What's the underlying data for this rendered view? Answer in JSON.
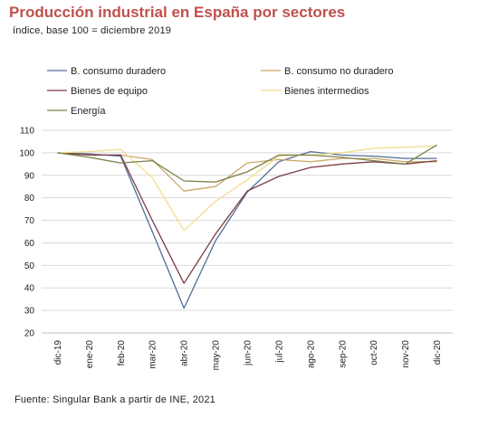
{
  "header": {
    "title": "Producción industrial en España por sectores",
    "subtitle": "índice, base 100 = diciembre 2019"
  },
  "footer": {
    "source": "Fuente: Singular Bank a partir de INE, 2021"
  },
  "chart_data": {
    "type": "line",
    "title": "Producción industrial en España por sectores",
    "subtitle": "índice, base 100 = diciembre 2019",
    "categories": [
      "dic-19",
      "ene-20",
      "feb-20",
      "mar-20",
      "abr-20",
      "may-20",
      "jun-20",
      "jul-20",
      "ago-20",
      "sep-20",
      "oct-20",
      "nov-20",
      "dic-20"
    ],
    "ylim": [
      20,
      110
    ],
    "yticks": [
      20,
      30,
      40,
      50,
      60,
      70,
      80,
      90,
      100,
      110
    ],
    "grid": true,
    "legend_position": "top",
    "series": [
      {
        "name": "B. consumo duradero",
        "color": "#4f6e96",
        "values": [
          100,
          99.5,
          98.5,
          65,
          31,
          61,
          82.5,
          96,
          100.5,
          99,
          98.5,
          97.5,
          97.5
        ]
      },
      {
        "name": "B. consumo no duradero",
        "color": "#c9a86a",
        "values": [
          100,
          99,
          99,
          97,
          83,
          85,
          95.5,
          97,
          96,
          97.5,
          97.5,
          96,
          96
        ]
      },
      {
        "name": "Bienes de equipo",
        "color": "#7b3b43",
        "values": [
          100,
          99,
          99,
          70,
          42,
          64,
          83,
          89.5,
          93.5,
          95,
          96,
          95,
          96.5
        ]
      },
      {
        "name": "Bienes intermedios",
        "color": "#f2dc8c",
        "values": [
          100,
          100.5,
          101.5,
          89,
          65.5,
          78.5,
          88,
          98.5,
          99,
          100,
          102,
          102.5,
          103
        ]
      },
      {
        "name": "Energía",
        "color": "#7c8049",
        "values": [
          100,
          98,
          95.5,
          96.5,
          87.5,
          87,
          91.5,
          99,
          99,
          98,
          96.5,
          95,
          103.5
        ]
      }
    ]
  }
}
